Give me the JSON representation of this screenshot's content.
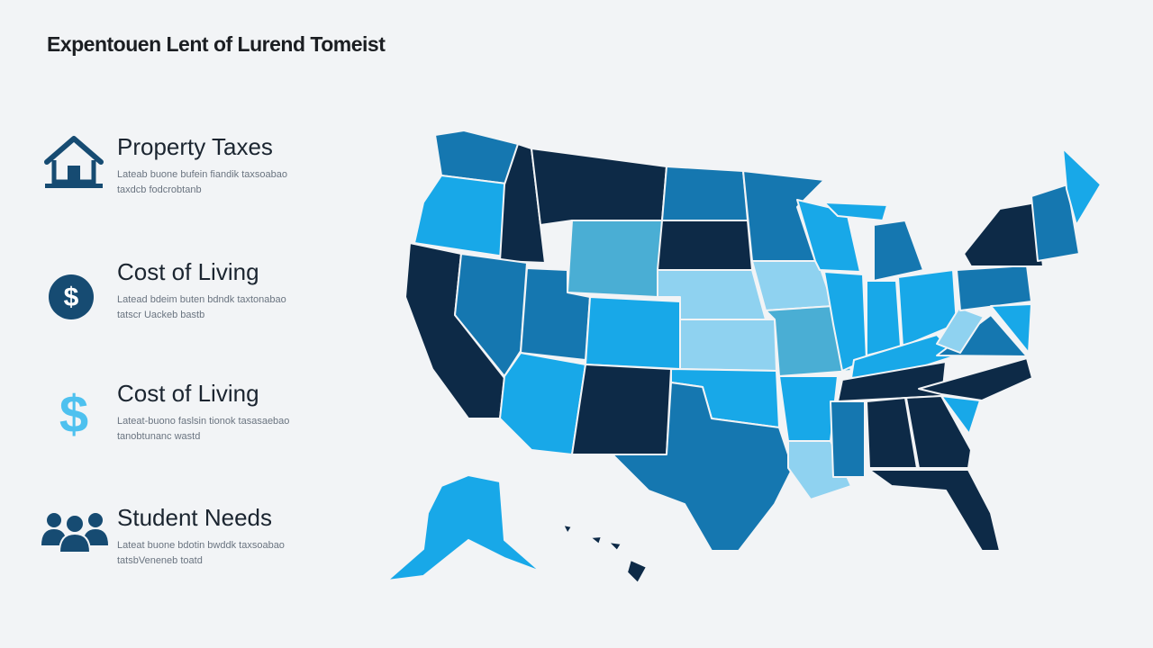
{
  "header": {
    "title": "Expentouen Lent of Lurend Tomeist"
  },
  "items": [
    {
      "heading": "Property Taxes",
      "description": [
        "Lateab buone bufein fiandik taxsoabao",
        "taxdcb fodcrobtanb"
      ]
    },
    {
      "heading": "Cost of Living",
      "description": [
        "Latead bdeim buten bdndk taxtonabao",
        "tatscr Uackeb bastb"
      ]
    },
    {
      "heading": "Cost of Living",
      "description": [
        "Lateat-buono faslsin tionok tasasaebao",
        "tanobtunanc wastd"
      ]
    },
    {
      "heading": "Student Needs",
      "description": [
        "Lateat buone bdotin bwddk taxsoabao",
        "tatsbVeneneb toatd"
      ]
    }
  ]
}
